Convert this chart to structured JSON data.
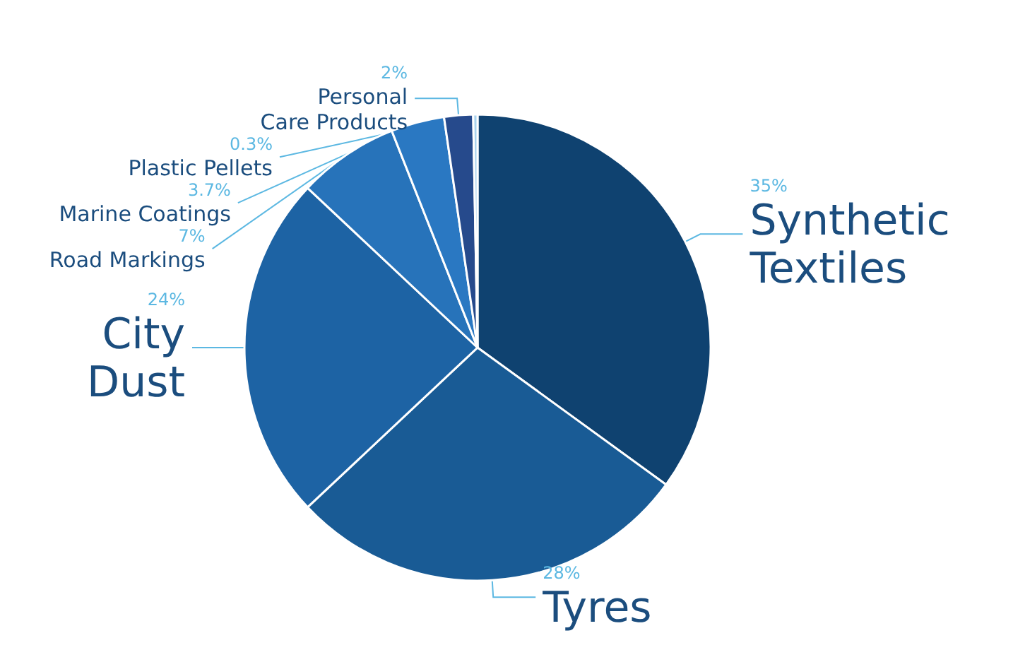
{
  "chart_data": {
    "type": "pie",
    "categories": [
      "Synthetic Textiles",
      "Tyres",
      "City Dust",
      "Road Markings",
      "Marine Coatings",
      "Personal Care Products",
      "Plastic Pellets"
    ],
    "values": [
      35,
      28,
      24,
      7,
      3.7,
      2,
      0.3
    ],
    "colors": [
      "#0f4270",
      "#195b95",
      "#1d63a4",
      "#2773ba",
      "#2a78c2",
      "#264a8c",
      "#a9d3ee"
    ],
    "value_labels": [
      "35%",
      "28%",
      "24%",
      "7%",
      "3.7%",
      "2%",
      "0.3%"
    ]
  }
}
